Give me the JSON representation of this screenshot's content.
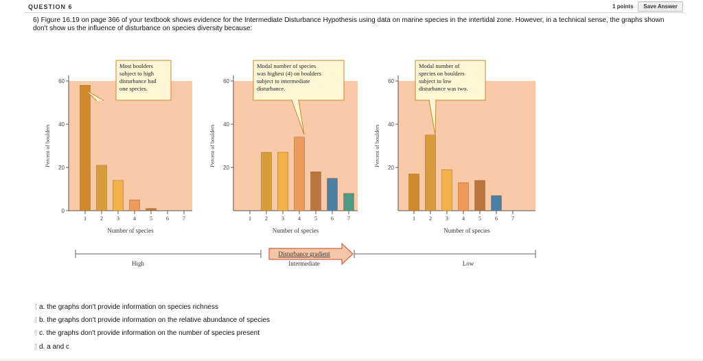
{
  "question": {
    "label": "QUESTION 6",
    "points": "1 points",
    "save_label": "Save Answer",
    "text": "6) Figure 16.19 on page 366 of your textbook shows evidence for the Intermediate Disturbance Hypothesis using data on marine species in the intertidal zone. However, in a technical sense, the graphs shown don't show us the influence of disturbance on species diversity because:"
  },
  "figure": {
    "ylabel": "Percent of boulders",
    "xlabel": "Number of species",
    "gradient_label": "Disturbance gradient",
    "gradient_levels": [
      "High",
      "Intermediate",
      "Low"
    ],
    "colors": {
      "panel_bg": "#f9c9a8",
      "bar_fills": [
        "#cf8a2c",
        "#d69b3b",
        "#f2b24a",
        "#ee9a5c",
        "#b8753f",
        "#4d7fa6",
        "#4f9a82"
      ],
      "callout_fill": "#fff6d6",
      "callout_border": "#c58a2e"
    }
  },
  "chart_data": [
    {
      "type": "bar",
      "categories": [
        "1",
        "2",
        "3",
        "4",
        "5",
        "6",
        "7"
      ],
      "values": [
        58,
        21,
        14,
        5,
        1,
        0,
        0
      ],
      "ylim": [
        0,
        60
      ],
      "yticks": [
        "0",
        "20",
        "40",
        "60"
      ],
      "callout": [
        "Most boulders",
        "subject to high",
        "disturbance had",
        "one species."
      ],
      "xlabel": "Number of species",
      "ylabel": "Percent of boulders"
    },
    {
      "type": "bar",
      "categories": [
        "1",
        "2",
        "3",
        "4",
        "5",
        "6",
        "7"
      ],
      "values": [
        0,
        27,
        27,
        34,
        18,
        15,
        8
      ],
      "ylim": [
        0,
        60
      ],
      "yticks": [
        "20",
        "40",
        "60"
      ],
      "callout": [
        "Modal number of species",
        "was highest (4) on boulders",
        "subject to intermediate",
        "disturbance."
      ],
      "xlabel": "Number of species",
      "ylabel": "Percent of boulders"
    },
    {
      "type": "bar",
      "categories": [
        "1",
        "2",
        "3",
        "4",
        "5",
        "6",
        "7"
      ],
      "values": [
        17,
        35,
        19,
        13,
        14,
        7,
        0
      ],
      "ylim": [
        0,
        60
      ],
      "yticks": [
        "20",
        "40",
        "60"
      ],
      "callout": [
        "Modal number of",
        "species on boulders",
        "subject to low",
        "disturbance was two."
      ],
      "xlabel": "Number of species",
      "ylabel": "Percent of boulders"
    }
  ],
  "options": [
    {
      "label": "a. the graphs don't provide information on species richness"
    },
    {
      "label": "b. the graphs don't provide information on the relative abundance of species"
    },
    {
      "label": "c. the graphs don't provide information on the number of species present"
    },
    {
      "label": "d. a and c"
    }
  ]
}
